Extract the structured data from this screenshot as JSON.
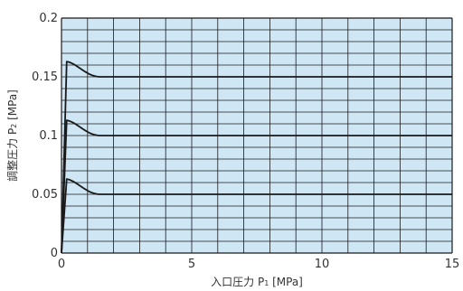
{
  "chart_data": {
    "type": "line",
    "xlabel": {
      "base": "入口圧力 P",
      "sub": "1",
      "tail": " [MPa]"
    },
    "ylabel": {
      "base": "調整圧力 P",
      "sub": "2",
      "tail": " [MPa]"
    },
    "xlim": [
      0,
      15
    ],
    "ylim": [
      0,
      0.2
    ],
    "x_ticks": [
      0,
      5,
      10,
      15
    ],
    "x_tick_labels": [
      "0",
      "5",
      "10",
      "15"
    ],
    "y_ticks": [
      0,
      0.05,
      0.1,
      0.15,
      0.2
    ],
    "y_tick_labels": [
      "0",
      "0.05",
      "0.1",
      "0.15",
      "0.2"
    ],
    "grid": true,
    "x_grid_step": 1,
    "y_grid_step": 0.01,
    "series": [
      {
        "x": [
          0,
          0.2,
          0.5,
          0.9,
          1.5,
          15
        ],
        "y": [
          0,
          0.063,
          0.058,
          0.052,
          0.05,
          0.05
        ]
      },
      {
        "x": [
          0,
          0.2,
          0.5,
          0.9,
          1.5,
          15
        ],
        "y": [
          0,
          0.113,
          0.108,
          0.102,
          0.1,
          0.1
        ]
      },
      {
        "x": [
          0,
          0.2,
          0.5,
          0.9,
          1.5,
          15
        ],
        "y": [
          0,
          0.163,
          0.158,
          0.152,
          0.15,
          0.15
        ]
      }
    ]
  },
  "colors": {
    "plot_bg": "#cfe6f5",
    "grid_line": "#1a1a1a",
    "series_line": "#1a1a1a",
    "text": "#333333"
  }
}
